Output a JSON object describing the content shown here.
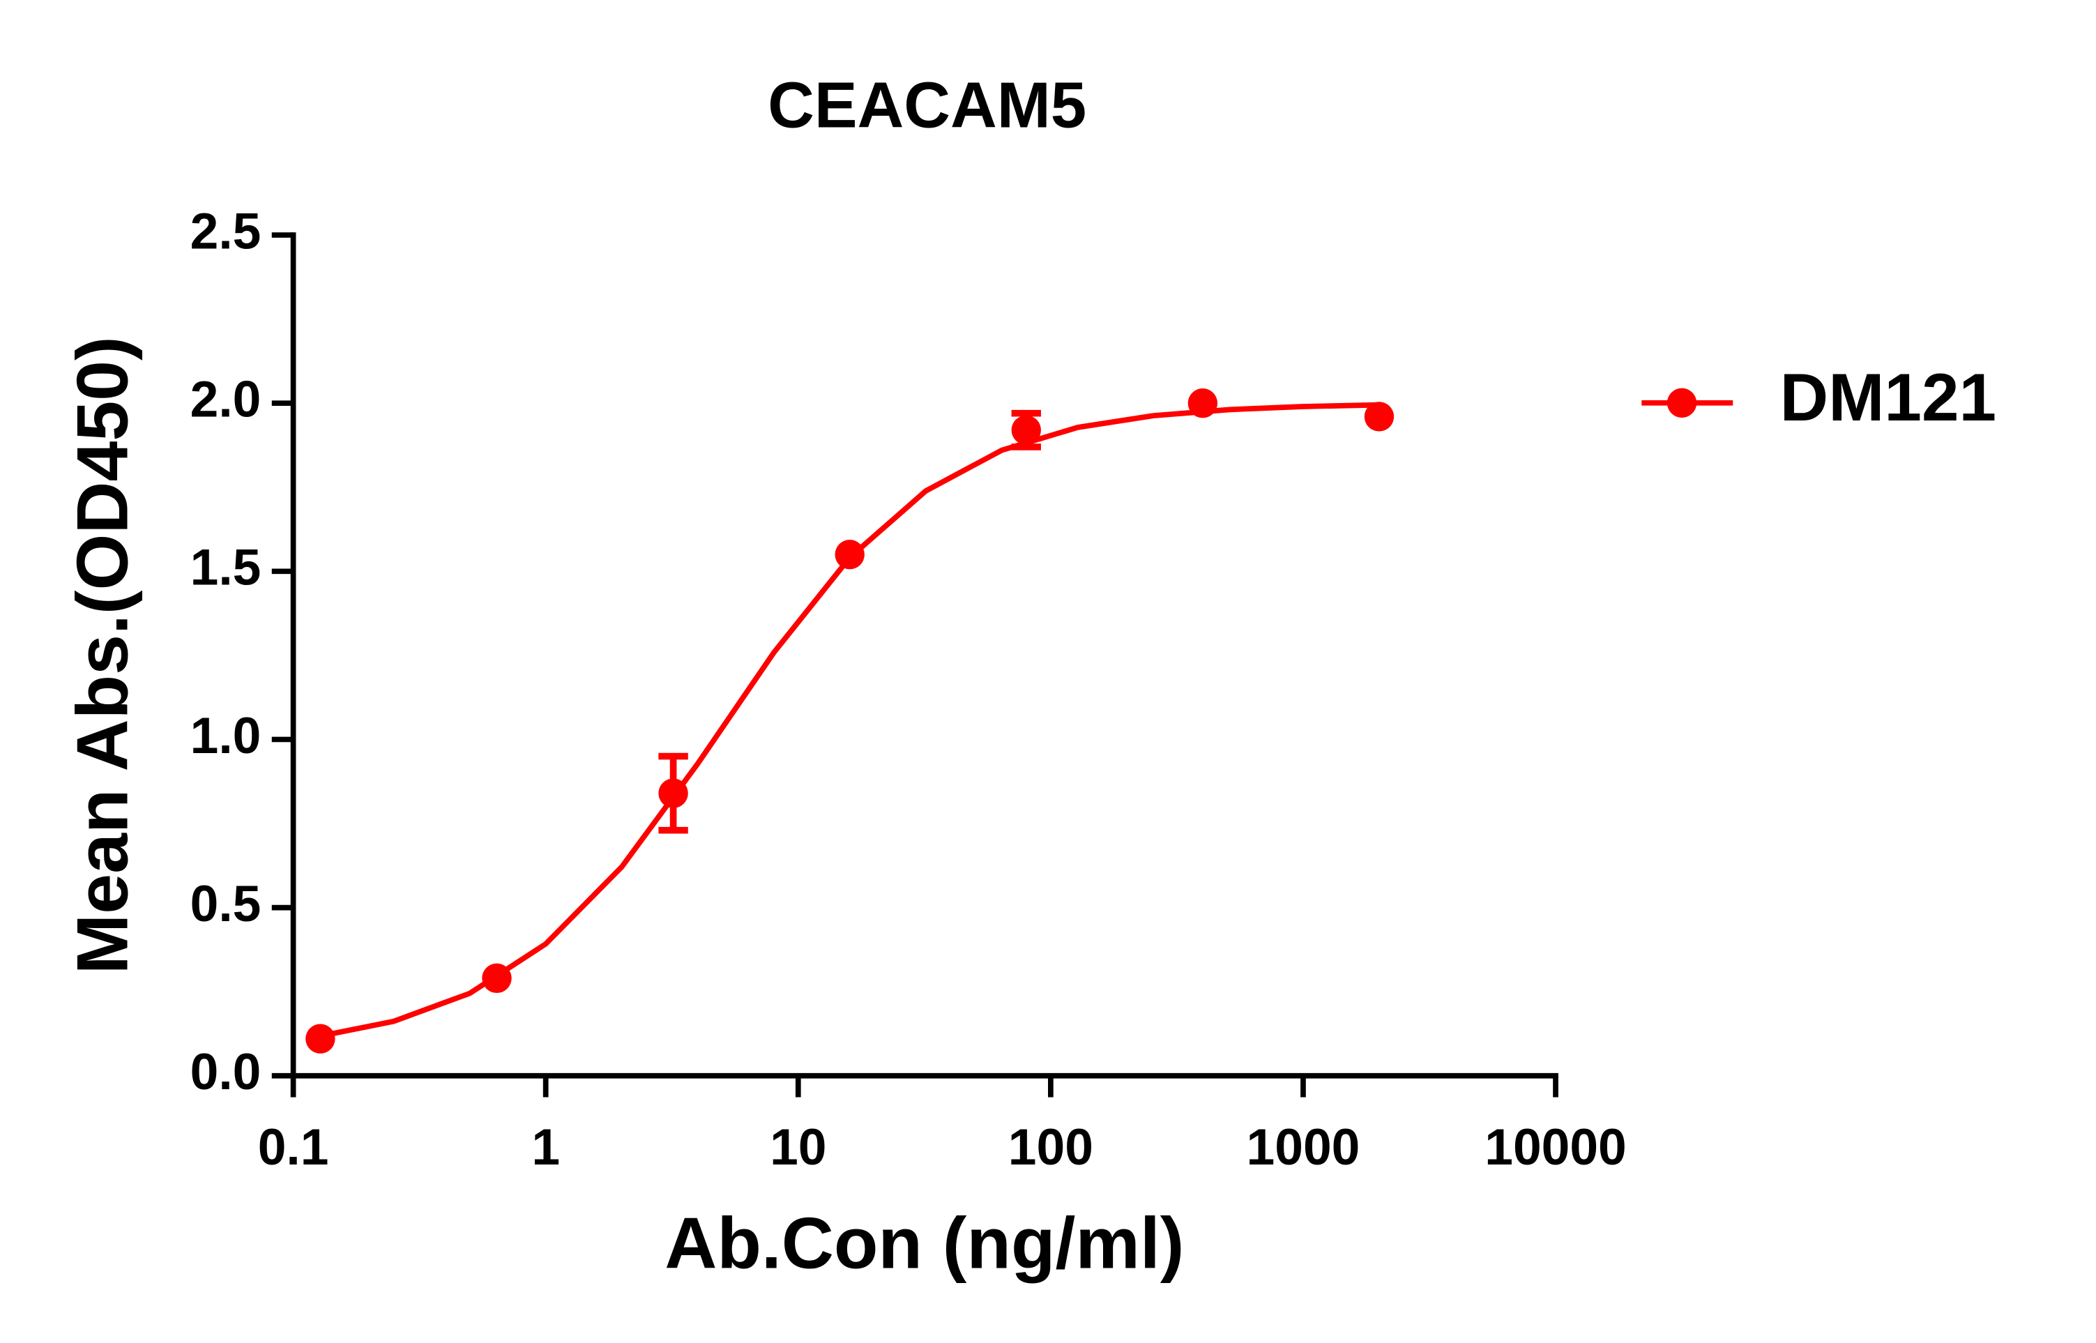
{
  "chart_data": {
    "type": "scatter",
    "title": "CEACAM5",
    "x_label": "Ab.Con (ng/ml)",
    "y_label": "Mean Abs.(OD450)",
    "x_scale": "log",
    "xlim": [
      0.1,
      10000
    ],
    "xticks": [
      0.1,
      1,
      10,
      100,
      1000,
      10000
    ],
    "ylim": [
      0,
      2.5
    ],
    "yticks": [
      {
        "value": 0,
        "label": "0.0"
      },
      {
        "value": 0.5,
        "label": "0.5"
      },
      {
        "value": 1,
        "label": "1.0"
      },
      {
        "value": 1.5,
        "label": "1.5"
      },
      {
        "value": 2,
        "label": "2.0"
      },
      {
        "value": 2.5,
        "label": "2.5"
      }
    ],
    "legend": "right",
    "series": [
      {
        "name": "DM121",
        "color": "#ff0000",
        "x": [
          0.128,
          0.64,
          3.2,
          16,
          80,
          400,
          2000
        ],
        "values": [
          0.11,
          0.29,
          0.84,
          1.55,
          1.92,
          2.0,
          1.96
        ],
        "errors": [
          null,
          null,
          0.11,
          null,
          0.05,
          null,
          null
        ],
        "fit": {
          "x": [
            0.128,
            0.25,
            0.5,
            1,
            2,
            4,
            8,
            16,
            32,
            64,
            128,
            256,
            512,
            1000,
            2000
          ],
          "values": [
            0.118,
            0.162,
            0.245,
            0.392,
            0.621,
            0.928,
            1.258,
            1.541,
            1.739,
            1.86,
            1.928,
            1.963,
            1.981,
            1.99,
            1.995
          ]
        }
      }
    ]
  }
}
